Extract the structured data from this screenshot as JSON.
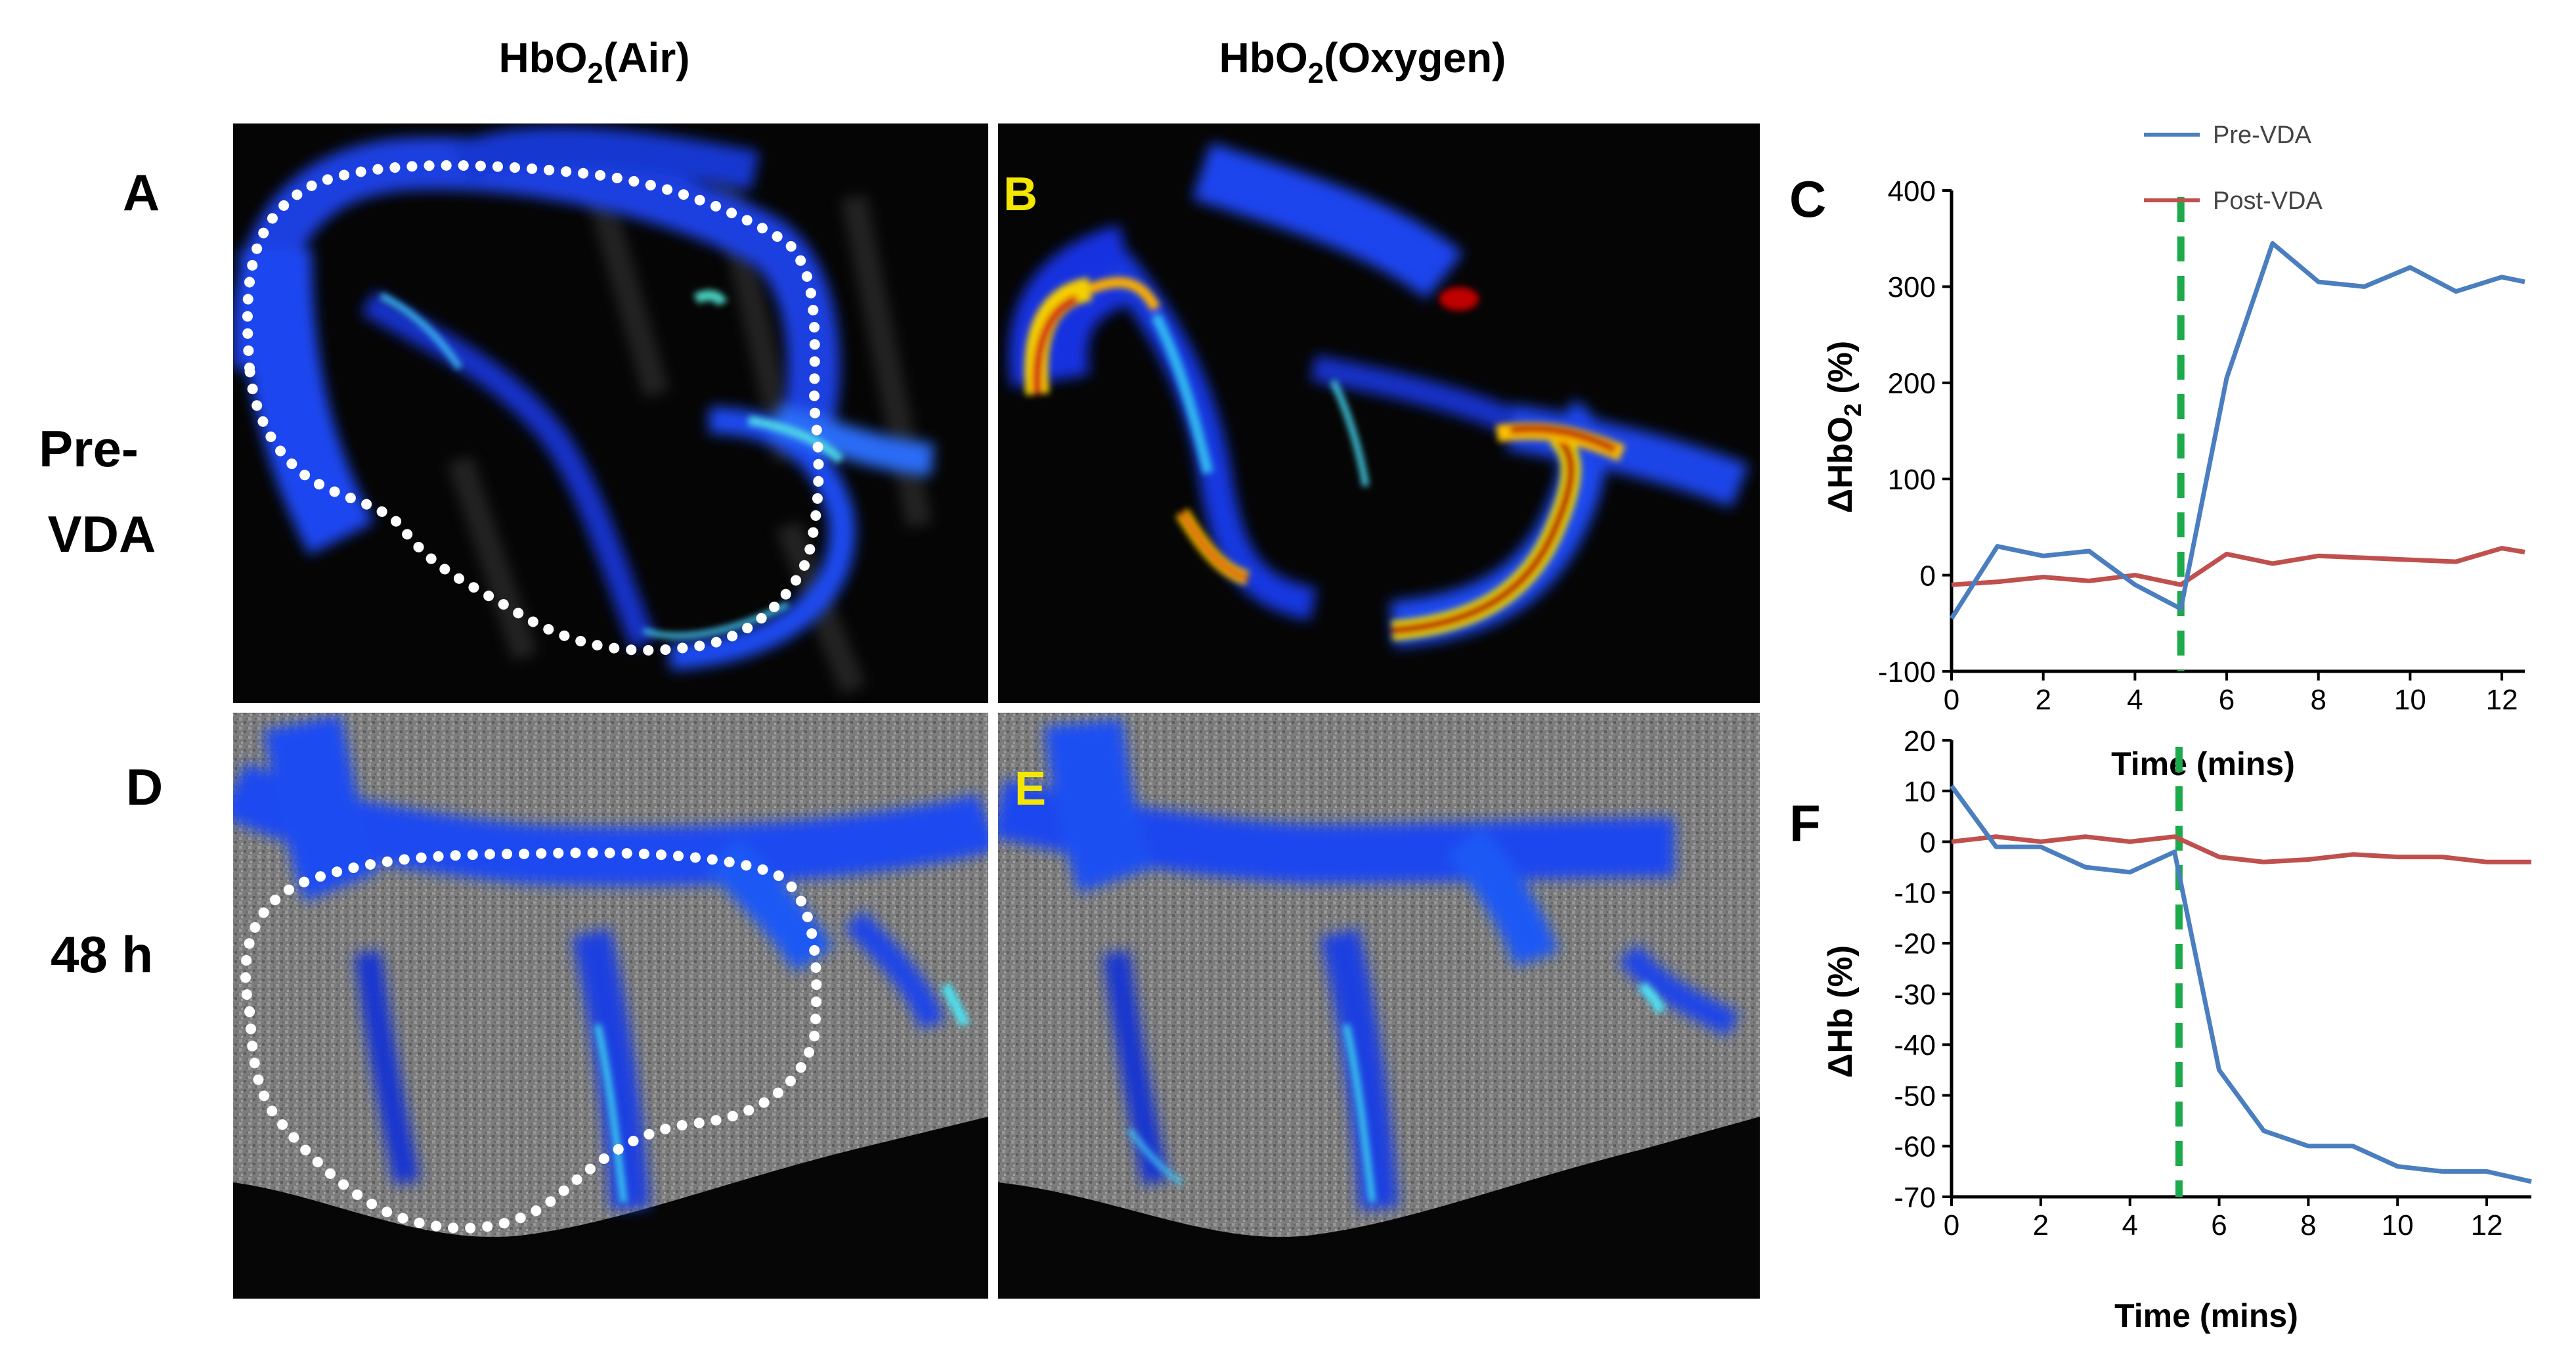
{
  "figure": {
    "col_header_air": "HbO2(Air)",
    "col_header_air_main": "HbO",
    "col_header_air_sub": "2",
    "col_header_air_rest": "(Air)",
    "col_header_oxy_main": "HbO",
    "col_header_oxy_sub": "2",
    "col_header_oxy_rest": "(Oxygen)",
    "row1_label_line1": "Pre-",
    "row1_label_line2": "VDA",
    "row2_label": "48 h",
    "panel_letters": {
      "A": "A",
      "B": "B",
      "C": "C",
      "D": "D",
      "E": "E",
      "F": "F"
    },
    "colors": {
      "pre": "#4a7ebf",
      "post": "#c0504d",
      "marker": "#1daa4a",
      "panel_letter_inset": "#f3e600"
    }
  },
  "chart_data": [
    {
      "panel": "C",
      "type": "line",
      "xlabel": "Time (mins)",
      "ylabel_main": "ΔHbO",
      "ylabel_sub": "2",
      "ylabel_rest": " (%)",
      "xlim": [
        0,
        12.5
      ],
      "ylim": [
        -100,
        400
      ],
      "xticks": [
        "0",
        "2",
        "4",
        "6",
        "8",
        "10",
        "12"
      ],
      "yticks": [
        "-100",
        "0",
        "100",
        "200",
        "300",
        "400"
      ],
      "marker_x": 5,
      "legend": [
        "Pre-VDA",
        "Post-VDA"
      ],
      "series": [
        {
          "name": "Pre-VDA",
          "x": [
            0,
            1,
            2,
            3,
            4,
            5,
            6,
            7,
            8,
            9,
            10,
            11,
            12,
            12.5
          ],
          "values": [
            -45,
            30,
            20,
            25,
            -10,
            -35,
            205,
            345,
            305,
            300,
            320,
            295,
            310,
            305
          ]
        },
        {
          "name": "Post-VDA",
          "x": [
            0,
            1,
            2,
            3,
            4,
            5,
            6,
            7,
            8,
            9,
            10,
            11,
            12,
            12.5
          ],
          "values": [
            -10,
            -7,
            -2,
            -6,
            0,
            -10,
            22,
            12,
            20,
            18,
            16,
            14,
            28,
            24
          ]
        }
      ]
    },
    {
      "panel": "F",
      "type": "line",
      "xlabel": "Time (mins)",
      "ylabel": "ΔHb (%)",
      "xlim": [
        0,
        13
      ],
      "ylim": [
        -70,
        20
      ],
      "xticks": [
        "0",
        "2",
        "4",
        "6",
        "8",
        "10",
        "12"
      ],
      "yticks": [
        "-70",
        "-60",
        "-50",
        "-40",
        "-30",
        "-20",
        "-10",
        "0",
        "10",
        "20"
      ],
      "marker_x": 5.1,
      "series": [
        {
          "name": "Pre-VDA",
          "x": [
            0,
            1,
            2,
            3,
            4,
            5,
            6,
            7,
            8,
            9,
            10,
            11,
            12,
            13
          ],
          "values": [
            11,
            -1,
            -1,
            -5,
            -6,
            -2,
            -45,
            -57,
            -60,
            -60,
            -64,
            -65,
            -65,
            -67
          ]
        },
        {
          "name": "Post-VDA",
          "x": [
            0,
            1,
            2,
            3,
            4,
            5,
            6,
            7,
            8,
            9,
            10,
            11,
            12,
            13
          ],
          "values": [
            0,
            1,
            0,
            1,
            0,
            1,
            -3,
            -4,
            -3.5,
            -2.5,
            -3,
            -3,
            -4,
            -4
          ]
        }
      ]
    }
  ]
}
